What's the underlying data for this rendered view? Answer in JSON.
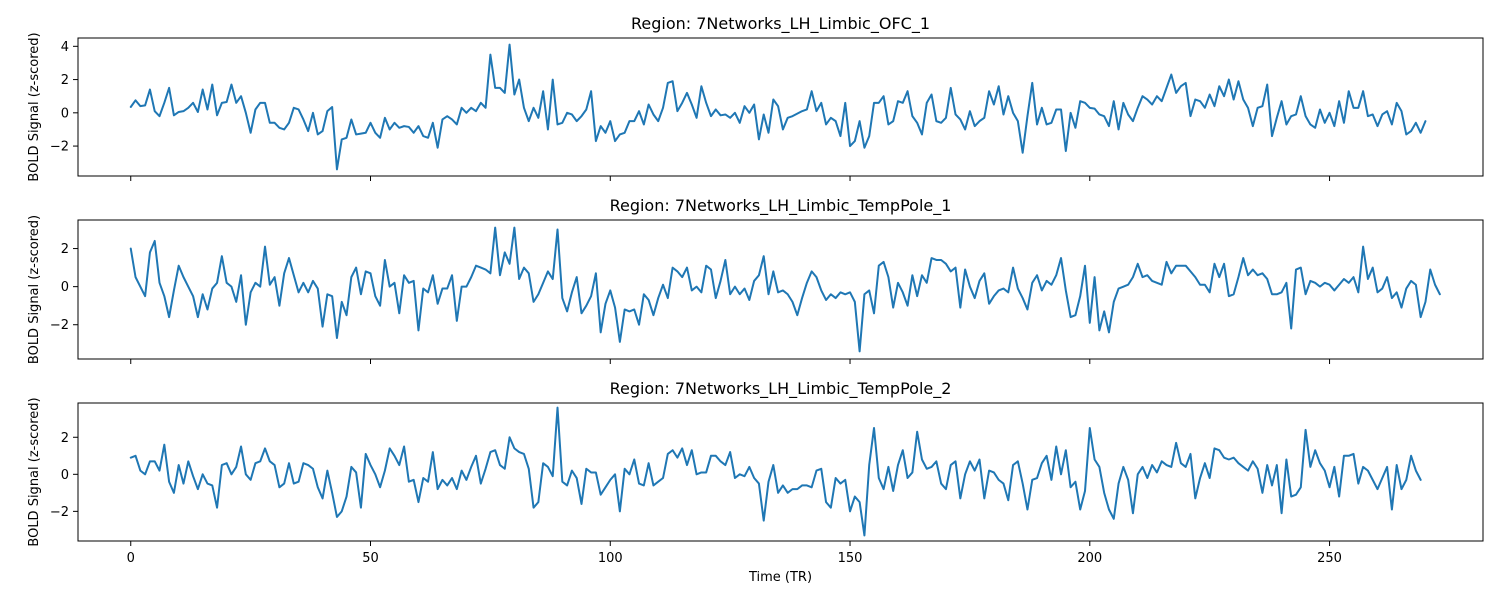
{
  "chart_data": [
    {
      "type": "line",
      "title": "Region: 7Networks_LH_Limbic_OFC_1",
      "xlabel": "",
      "ylabel": "BOLD Signal (z-scored)",
      "xlim": [
        -11,
        282
      ],
      "ylim": [
        -3.8,
        4.5
      ],
      "xticks": [
        0,
        50,
        100,
        150,
        200,
        250
      ],
      "xtick_labels": [],
      "yticks": [
        -2,
        0,
        2,
        4
      ],
      "ytick_labels": [
        "−2",
        "0",
        "2",
        "4"
      ],
      "grid": false,
      "series": [
        {
          "color": "#1f77b4",
          "x_start": 0,
          "x_step": 1,
          "values": [
            0.35,
            0.75,
            0.4,
            0.45,
            1.4,
            0.1,
            -0.2,
            0.6,
            1.5,
            -0.15,
            0.05,
            0.1,
            0.3,
            0.6,
            0.05,
            1.4,
            0.2,
            1.7,
            -0.15,
            0.6,
            0.65,
            1.7,
            0.6,
            1.0,
            0.0,
            -1.2,
            0.2,
            0.6,
            0.6,
            -0.6,
            -0.6,
            -0.9,
            -1.0,
            -0.6,
            0.3,
            0.2,
            -0.4,
            -1.1,
            0.0,
            -1.3,
            -1.1,
            0.1,
            0.35,
            -3.4,
            -1.6,
            -1.5,
            -0.4,
            -1.3,
            -1.25,
            -1.2,
            -0.6,
            -1.2,
            -1.5,
            -0.3,
            -1.0,
            -0.6,
            -0.9,
            -0.8,
            -0.85,
            -1.2,
            -0.8,
            -1.4,
            -1.5,
            -0.6,
            -2.1,
            -0.4,
            -0.2,
            -0.4,
            -0.7,
            0.3,
            0.0,
            0.3,
            0.1,
            0.6,
            0.3,
            3.5,
            1.5,
            1.5,
            1.2,
            4.1,
            1.1,
            2.0,
            0.3,
            -0.5,
            0.3,
            -0.3,
            1.3,
            -1.0,
            2.0,
            -0.7,
            -0.6,
            0.0,
            -0.1,
            -0.5,
            -0.2,
            0.2,
            1.3,
            -1.7,
            -0.8,
            -1.2,
            -0.5,
            -1.7,
            -1.3,
            -1.2,
            -0.5,
            -0.5,
            0.1,
            -0.7,
            0.5,
            -0.1,
            -0.5,
            0.3,
            1.8,
            1.9,
            0.1,
            0.6,
            1.2,
            0.5,
            -0.3,
            1.6,
            0.6,
            -0.2,
            0.2,
            -0.15,
            -0.1,
            -0.3,
            0.0,
            -0.6,
            0.4,
            0.0,
            0.5,
            -1.6,
            -0.1,
            -1.2,
            0.8,
            0.4,
            -1.0,
            -0.3,
            -0.2,
            -0.05,
            0.1,
            0.2,
            1.3,
            0.1,
            0.6,
            -0.7,
            -0.3,
            -0.5,
            -1.4,
            0.6,
            -2.0,
            -1.7,
            -0.5,
            -2.1,
            -1.4,
            0.6,
            0.6,
            1.0,
            -0.7,
            -0.5,
            0.7,
            0.6,
            1.3,
            -0.2,
            -0.6,
            -1.3,
            0.6,
            1.1,
            -0.5,
            -0.6,
            -0.3,
            1.5,
            -0.1,
            -0.4,
            -1.0,
            0.1,
            -0.8,
            -0.5,
            -0.3,
            1.3,
            0.5,
            1.6,
            -0.1,
            1.0,
            0.0,
            -0.5,
            -2.4,
            -0.2,
            1.8,
            -0.7,
            0.3,
            -0.7,
            -0.6,
            0.2,
            0.2,
            -2.3,
            0.0,
            -0.9,
            0.7,
            0.6,
            0.3,
            0.25,
            -0.1,
            -0.2,
            -0.8,
            0.7,
            -1.0,
            0.6,
            -0.1,
            -0.5,
            0.3,
            1.0,
            0.8,
            0.5,
            1.0,
            0.7,
            1.5,
            2.3,
            1.2,
            1.6,
            1.8,
            -0.2,
            0.8,
            0.7,
            0.3,
            1.1,
            0.4,
            1.6,
            1.0,
            2.0,
            0.8,
            1.9,
            0.8,
            0.3,
            -0.8,
            0.3,
            0.4,
            1.7,
            -1.4,
            -0.3,
            0.7,
            -0.7,
            -0.2,
            -0.1,
            1.0,
            -0.2,
            -0.7,
            -0.9,
            0.2,
            -0.6,
            0.0,
            -0.8,
            0.7,
            -0.6,
            1.3,
            0.3,
            0.3,
            1.3,
            -0.2,
            -0.1,
            -0.8,
            -0.1,
            0.1,
            -0.7,
            0.6,
            0.1,
            -1.3,
            -1.1,
            -0.6,
            -1.2,
            -0.5
          ]
        }
      ]
    },
    {
      "type": "line",
      "title": "Region: 7Networks_LH_Limbic_TempPole_1",
      "xlabel": "",
      "ylabel": "BOLD Signal (z-scored)",
      "xlim": [
        -11,
        282
      ],
      "ylim": [
        -3.8,
        3.5
      ],
      "xticks": [
        0,
        50,
        100,
        150,
        200,
        250
      ],
      "xtick_labels": [],
      "yticks": [
        -2,
        0,
        2
      ],
      "ytick_labels": [
        "−2",
        "0",
        "2"
      ],
      "grid": false,
      "series": [
        {
          "color": "#1f77b4",
          "x_start": 0,
          "x_step": 1,
          "values": [
            2.0,
            0.5,
            0.0,
            -0.5,
            1.8,
            2.4,
            0.2,
            -0.5,
            -1.6,
            -0.2,
            1.1,
            0.5,
            0.0,
            -0.5,
            -1.6,
            -0.4,
            -1.2,
            -0.1,
            0.2,
            1.6,
            0.2,
            0.0,
            -0.8,
            0.6,
            -2.0,
            -0.3,
            0.2,
            0.0,
            2.1,
            0.1,
            0.5,
            -1.0,
            0.7,
            1.5,
            0.6,
            -0.3,
            0.2,
            -0.3,
            0.3,
            -0.1,
            -2.1,
            -0.4,
            -0.5,
            -2.7,
            -0.8,
            -1.5,
            0.5,
            1.0,
            -0.4,
            0.8,
            0.7,
            -0.5,
            -1.0,
            1.4,
            0.0,
            0.2,
            -1.4,
            0.6,
            0.2,
            0.3,
            -2.3,
            -0.1,
            -0.3,
            0.6,
            -0.9,
            -0.1,
            -0.1,
            0.6,
            -1.8,
            0.0,
            0.0,
            0.5,
            1.1,
            1.0,
            0.9,
            0.7,
            3.1,
            0.6,
            1.8,
            1.2,
            3.1,
            0.4,
            1.0,
            0.7,
            -0.8,
            -0.4,
            0.2,
            0.8,
            0.4,
            3.0,
            -0.6,
            -1.3,
            -0.3,
            0.5,
            -1.4,
            -1.0,
            -0.5,
            0.7,
            -2.4,
            -0.9,
            -0.2,
            -1.1,
            -2.9,
            -1.2,
            -1.3,
            -1.2,
            -2.0,
            -0.4,
            -0.7,
            -1.5,
            -0.6,
            0.1,
            -0.6,
            1.0,
            0.8,
            0.5,
            1.0,
            -0.2,
            0.0,
            -0.3,
            1.1,
            0.9,
            -0.6,
            0.3,
            1.4,
            -0.4,
            0.0,
            -0.4,
            -0.1,
            -0.7,
            0.3,
            0.6,
            1.6,
            -0.4,
            0.8,
            -0.3,
            -0.2,
            -0.4,
            -0.8,
            -1.5,
            -0.6,
            0.2,
            0.8,
            0.5,
            -0.2,
            -0.7,
            -0.4,
            -0.6,
            -0.3,
            -0.4,
            -0.3,
            -0.8,
            -3.4,
            -0.4,
            -0.2,
            -1.4,
            1.1,
            1.3,
            0.5,
            -1.1,
            0.2,
            -0.3,
            -1.0,
            0.6,
            -0.5,
            0.6,
            0.2,
            1.5,
            1.4,
            1.4,
            1.2,
            0.8,
            1.0,
            -1.1,
            0.9,
            0.0,
            -0.6,
            0.3,
            0.7,
            -0.9,
            -0.5,
            -0.2,
            -0.1,
            -0.3,
            1.0,
            -0.1,
            -0.6,
            -1.2,
            0.2,
            0.6,
            -0.2,
            0.3,
            0.1,
            0.6,
            1.5,
            -0.2,
            -1.6,
            -1.5,
            -0.5,
            1.1,
            -1.9,
            0.5,
            -2.3,
            -1.3,
            -2.4,
            -0.8,
            -0.1,
            0.0,
            0.1,
            0.5,
            1.2,
            0.5,
            0.6,
            0.3,
            0.2,
            0.1,
            1.3,
            0.7,
            1.1,
            1.1,
            1.1,
            0.8,
            0.5,
            0.1,
            0.1,
            -0.3,
            1.2,
            0.5,
            1.2,
            -0.5,
            -0.4,
            0.5,
            1.5,
            0.6,
            0.9,
            0.6,
            0.7,
            0.4,
            -0.4,
            -0.4,
            -0.3,
            0.2,
            -2.2,
            0.9,
            1.0,
            -0.4,
            0.3,
            0.2,
            0.0,
            0.2,
            0.1,
            -0.2,
            0.1,
            0.4,
            0.2,
            0.5,
            -0.3,
            2.1,
            0.4,
            1.0,
            -0.3,
            -0.1,
            0.5,
            -0.6,
            -0.3,
            -1.1,
            -0.1,
            0.3,
            0.1,
            -1.6,
            -0.8,
            0.9,
            0.1,
            -0.4
          ]
        }
      ]
    },
    {
      "type": "line",
      "title": "Region: 7Networks_LH_Limbic_TempPole_2",
      "xlabel": "Time (TR)",
      "ylabel": "BOLD Signal (z-scored)",
      "xlim": [
        -11,
        282
      ],
      "ylim": [
        -3.6,
        3.85
      ],
      "xticks": [
        0,
        50,
        100,
        150,
        200,
        250
      ],
      "xtick_labels": [
        "0",
        "50",
        "100",
        "150",
        "200",
        "250"
      ],
      "yticks": [
        -2,
        0,
        2
      ],
      "ytick_labels": [
        "−2",
        "0",
        "2"
      ],
      "grid": false,
      "series": [
        {
          "color": "#1f77b4",
          "x_start": 0,
          "x_step": 1,
          "values": [
            0.9,
            1.0,
            0.2,
            0.0,
            0.7,
            0.7,
            0.2,
            1.6,
            -0.4,
            -1.0,
            0.5,
            -0.5,
            0.7,
            -0.1,
            -0.8,
            0.0,
            -0.5,
            -0.6,
            -1.8,
            0.5,
            0.6,
            0.0,
            0.4,
            1.5,
            0.0,
            -0.3,
            0.6,
            0.7,
            1.4,
            0.7,
            0.5,
            -0.7,
            -0.5,
            0.6,
            -0.5,
            -0.4,
            0.6,
            0.5,
            0.3,
            -0.7,
            -1.3,
            0.2,
            -1.0,
            -2.3,
            -2.0,
            -1.2,
            0.4,
            0.1,
            -1.8,
            1.1,
            0.5,
            0.0,
            -0.7,
            0.2,
            1.4,
            1.0,
            0.5,
            1.5,
            -0.4,
            -0.3,
            -1.5,
            -0.2,
            -0.4,
            1.2,
            -0.8,
            -0.3,
            -0.6,
            -0.2,
            -0.8,
            0.2,
            -0.3,
            0.4,
            1.0,
            -0.5,
            0.3,
            1.2,
            1.3,
            0.5,
            0.3,
            2.0,
            1.4,
            1.2,
            1.1,
            0.3,
            -1.8,
            -1.5,
            0.6,
            0.4,
            -0.1,
            3.6,
            -0.4,
            -0.6,
            0.2,
            -0.2,
            -1.6,
            0.3,
            0.1,
            0.1,
            -1.1,
            -0.7,
            -0.3,
            0.0,
            -2.0,
            0.3,
            0.0,
            0.8,
            -0.5,
            -0.6,
            0.6,
            -0.6,
            -0.4,
            -0.2,
            1.1,
            1.3,
            0.9,
            1.4,
            0.5,
            1.3,
            0.0,
            0.1,
            0.1,
            1.0,
            1.0,
            0.7,
            0.5,
            1.2,
            -0.2,
            0.0,
            -0.1,
            0.4,
            -0.2,
            -0.5,
            -2.5,
            -0.4,
            0.5,
            -1.0,
            -0.6,
            -1.0,
            -0.8,
            -0.8,
            -0.6,
            -0.6,
            -0.7,
            0.2,
            0.3,
            -1.5,
            -1.8,
            -0.2,
            -0.5,
            -0.3,
            -2.0,
            -1.2,
            -1.5,
            -3.3,
            0.5,
            2.5,
            -0.2,
            -0.8,
            0.4,
            -0.9,
            0.5,
            1.3,
            -0.2,
            0.1,
            2.3,
            0.8,
            0.3,
            0.4,
            0.7,
            -0.5,
            -0.8,
            0.5,
            0.7,
            -1.3,
            0.0,
            0.7,
            0.2,
            0.8,
            -1.3,
            0.2,
            0.1,
            -0.3,
            -0.5,
            -1.4,
            0.5,
            0.7,
            -0.5,
            -1.9,
            -0.3,
            -0.2,
            0.6,
            1.0,
            -0.3,
            1.5,
            0.0,
            1.3,
            -0.7,
            -0.4,
            -1.9,
            -0.9,
            2.5,
            0.8,
            0.4,
            -1.0,
            -1.9,
            -2.4,
            -0.5,
            0.4,
            -0.3,
            -2.1,
            0.0,
            0.4,
            -0.2,
            0.5,
            0.1,
            0.7,
            0.5,
            0.4,
            1.7,
            0.6,
            0.4,
            1.1,
            -1.3,
            -0.2,
            0.6,
            -0.2,
            1.4,
            1.3,
            0.9,
            0.8,
            0.9,
            0.6,
            0.4,
            0.2,
            0.7,
            0.3,
            -1.0,
            0.5,
            -0.6,
            0.5,
            -2.1,
            0.8,
            -1.2,
            -1.1,
            -0.7,
            2.4,
            0.4,
            1.3,
            0.6,
            0.2,
            -0.7,
            0.4,
            -1.2,
            1.0,
            1.0,
            1.1,
            -0.5,
            0.4,
            0.2,
            -0.3,
            -0.8,
            -0.2,
            0.4,
            -1.9,
            0.5,
            -0.8,
            -0.3,
            1.0,
            0.2,
            -0.3
          ]
        }
      ]
    }
  ]
}
